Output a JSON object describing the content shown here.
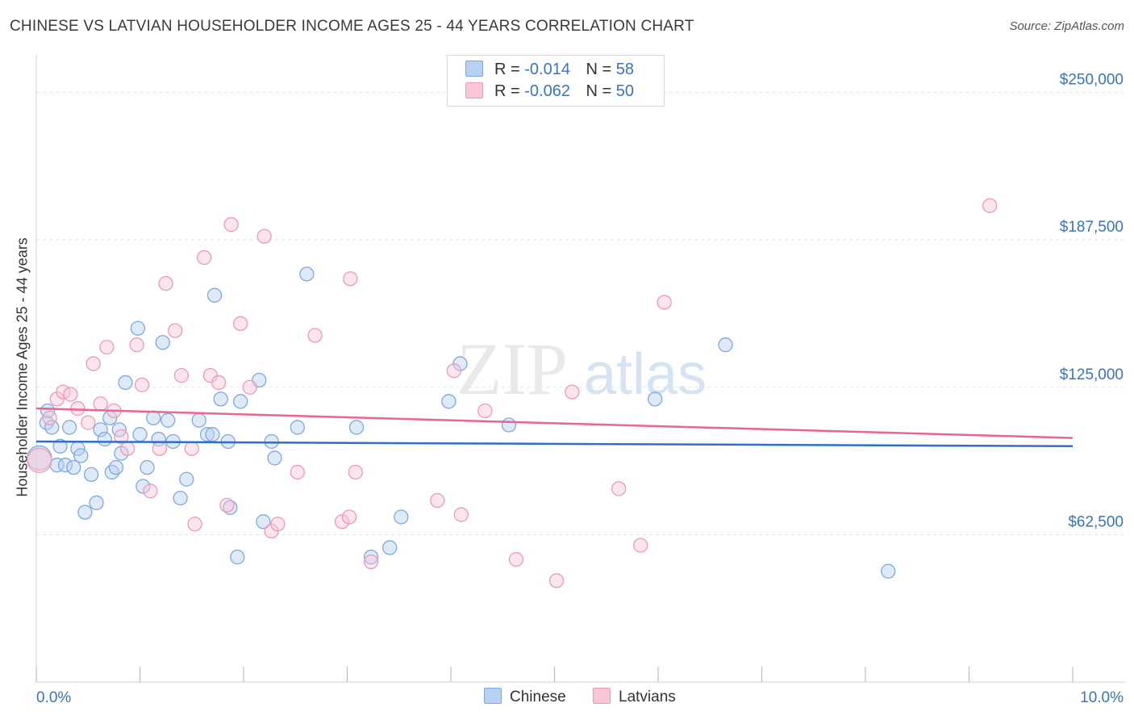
{
  "title": "CHINESE VS LATVIAN HOUSEHOLDER INCOME AGES 25 - 44 YEARS CORRELATION CHART",
  "source": "Source: ZipAtlas.com",
  "watermark": {
    "zip": "ZIP",
    "atlas": "atlas"
  },
  "legend": {
    "r_label": "R =",
    "n_label": "N =",
    "series": [
      {
        "name": "Chinese",
        "r": "-0.014",
        "n": "58",
        "fill": "#b8d1f2",
        "stroke": "#7ea8e0"
      },
      {
        "name": "Latvians",
        "r": "-0.062",
        "n": "50",
        "fill": "#f8c6d6",
        "stroke": "#ee9ab5"
      }
    ]
  },
  "chart_data": {
    "type": "scatter",
    "title": "CHINESE VS LATVIAN HOUSEHOLDER INCOME AGES 25 - 44 YEARS CORRELATION CHART",
    "xlabel": "",
    "ylabel": "Householder Income Ages 25 - 44 years",
    "xlim": [
      0,
      10
    ],
    "ylim": [
      0,
      262500
    ],
    "x_tick_labels": [
      "0.0%",
      "10.0%"
    ],
    "y_ticks": [
      62500,
      125000,
      187500,
      250000
    ],
    "y_tick_labels": [
      "$62,500",
      "$125,000",
      "$187,500",
      "$250,000"
    ],
    "grid": true,
    "legend_position": "top-center",
    "series": [
      {
        "name": "Chinese",
        "color": "#6fa0de",
        "trend": {
          "y_start": 102000,
          "y_end": 100000,
          "color": "#2f6fc6"
        },
        "points": [
          [
            0.03,
            95000
          ],
          [
            0.1,
            110000
          ],
          [
            0.11,
            115000
          ],
          [
            0.15,
            108000
          ],
          [
            0.23,
            100000
          ],
          [
            0.2,
            92000
          ],
          [
            0.28,
            92000
          ],
          [
            0.32,
            108000
          ],
          [
            0.36,
            91000
          ],
          [
            0.4,
            99000
          ],
          [
            0.43,
            96000
          ],
          [
            0.47,
            72000
          ],
          [
            0.53,
            88000
          ],
          [
            0.58,
            76000
          ],
          [
            0.62,
            107000
          ],
          [
            0.66,
            103000
          ],
          [
            0.71,
            112000
          ],
          [
            0.73,
            89000
          ],
          [
            0.77,
            91000
          ],
          [
            0.8,
            107000
          ],
          [
            0.82,
            97000
          ],
          [
            0.86,
            127000
          ],
          [
            0.98,
            150000
          ],
          [
            1.0,
            105000
          ],
          [
            1.03,
            83000
          ],
          [
            1.07,
            91000
          ],
          [
            1.13,
            112000
          ],
          [
            1.18,
            103000
          ],
          [
            1.22,
            144000
          ],
          [
            1.27,
            111000
          ],
          [
            1.32,
            102000
          ],
          [
            1.39,
            78000
          ],
          [
            1.45,
            86000
          ],
          [
            1.57,
            111000
          ],
          [
            1.65,
            105000
          ],
          [
            1.7,
            105000
          ],
          [
            1.72,
            164000
          ],
          [
            1.78,
            120000
          ],
          [
            1.85,
            102000
          ],
          [
            1.87,
            74000
          ],
          [
            1.94,
            53000
          ],
          [
            1.97,
            119000
          ],
          [
            2.15,
            128000
          ],
          [
            2.19,
            68000
          ],
          [
            2.27,
            102000
          ],
          [
            2.3,
            95000
          ],
          [
            2.52,
            108000
          ],
          [
            2.61,
            173000
          ],
          [
            3.09,
            108000
          ],
          [
            3.23,
            53000
          ],
          [
            3.41,
            57000
          ],
          [
            3.52,
            70000
          ],
          [
            3.98,
            119000
          ],
          [
            4.09,
            135000
          ],
          [
            4.56,
            109000
          ],
          [
            5.97,
            120000
          ],
          [
            6.65,
            143000
          ],
          [
            8.22,
            47000
          ]
        ]
      },
      {
        "name": "Latvians",
        "color": "#f08db0",
        "trend": {
          "y_start": 116000,
          "y_end": 103500,
          "color": "#e8668f"
        },
        "points": [
          [
            0.03,
            94000
          ],
          [
            0.13,
            112000
          ],
          [
            0.2,
            120000
          ],
          [
            0.26,
            123000
          ],
          [
            0.33,
            122000
          ],
          [
            0.4,
            116000
          ],
          [
            0.5,
            110000
          ],
          [
            0.55,
            135000
          ],
          [
            0.62,
            118000
          ],
          [
            0.68,
            142000
          ],
          [
            0.75,
            115000
          ],
          [
            0.82,
            104000
          ],
          [
            0.88,
            99000
          ],
          [
            0.97,
            143000
          ],
          [
            1.02,
            126000
          ],
          [
            1.1,
            81000
          ],
          [
            1.19,
            99000
          ],
          [
            1.25,
            169000
          ],
          [
            1.34,
            149000
          ],
          [
            1.4,
            130000
          ],
          [
            1.5,
            99000
          ],
          [
            1.53,
            67000
          ],
          [
            1.62,
            180000
          ],
          [
            1.68,
            130000
          ],
          [
            1.76,
            127000
          ],
          [
            1.84,
            75000
          ],
          [
            1.88,
            194000
          ],
          [
            1.97,
            152000
          ],
          [
            2.06,
            125000
          ],
          [
            2.2,
            189000
          ],
          [
            2.27,
            64000
          ],
          [
            2.33,
            67000
          ],
          [
            2.52,
            89000
          ],
          [
            2.69,
            147000
          ],
          [
            2.95,
            68000
          ],
          [
            3.02,
            70000
          ],
          [
            3.03,
            171000
          ],
          [
            3.08,
            89000
          ],
          [
            3.23,
            51000
          ],
          [
            3.87,
            77000
          ],
          [
            4.03,
            132000
          ],
          [
            4.1,
            71000
          ],
          [
            4.33,
            115000
          ],
          [
            4.63,
            52000
          ],
          [
            5.02,
            43000
          ],
          [
            5.17,
            123000
          ],
          [
            5.62,
            82000
          ],
          [
            5.83,
            58000
          ],
          [
            6.06,
            161000
          ],
          [
            9.2,
            202000
          ]
        ]
      }
    ]
  }
}
